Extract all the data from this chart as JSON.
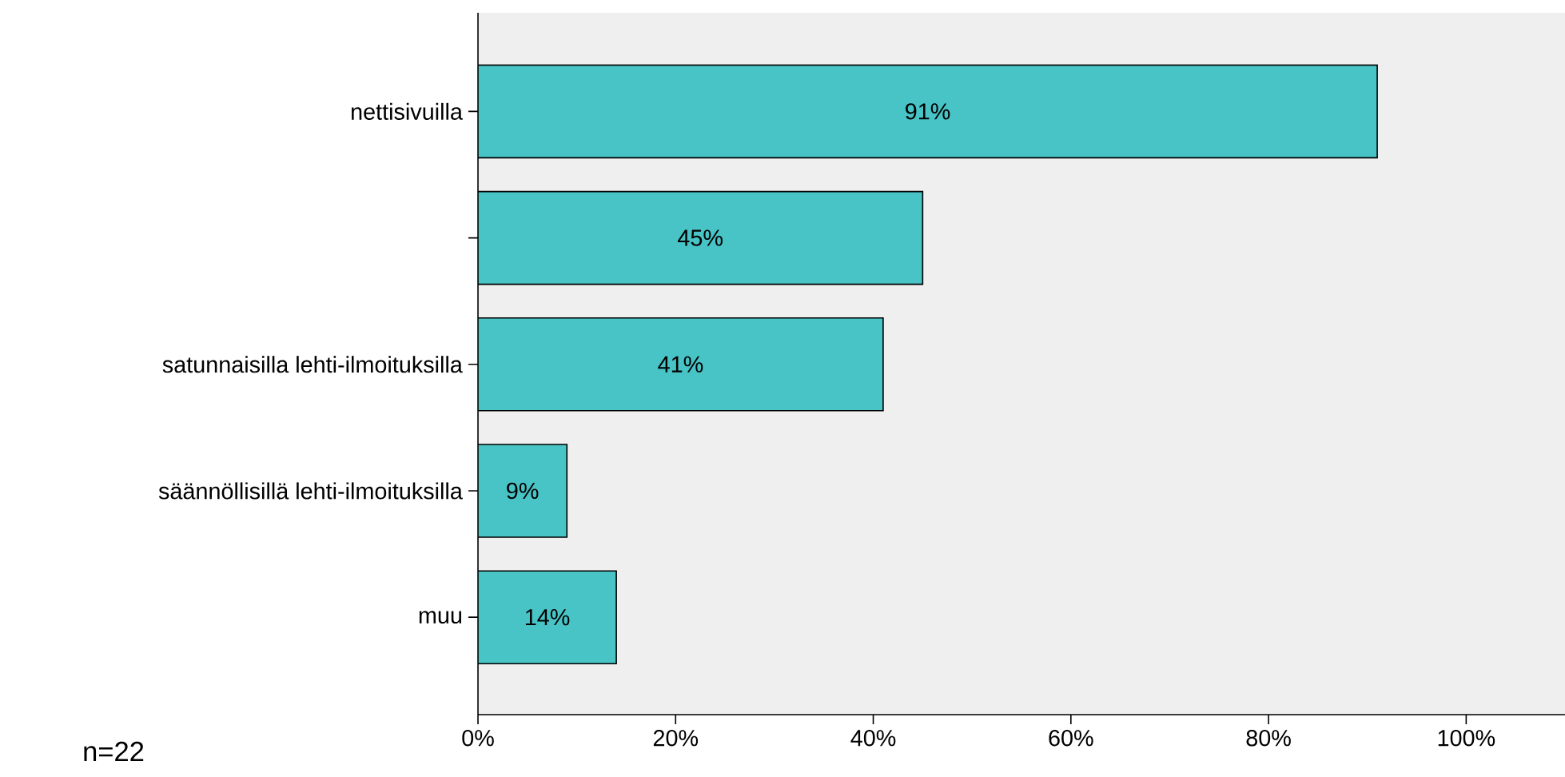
{
  "chart_data": {
    "type": "bar",
    "orientation": "horizontal",
    "categories": [
      "nettisivuilla",
      null,
      "satunnaisilla lehti-ilmoituksilla",
      "säännöllisillä lehti-ilmoituksilla",
      "muu"
    ],
    "values": [
      91,
      45,
      41,
      9,
      14
    ],
    "value_labels": [
      "91%",
      "45%",
      "41%",
      "9%",
      "14%"
    ],
    "color": "#48c3c6",
    "xlim": [
      0,
      110
    ],
    "xticks": [
      {
        "value": 0,
        "label": "0%"
      },
      {
        "value": 20,
        "label": "20%"
      },
      {
        "value": 40,
        "label": "40%"
      },
      {
        "value": 60,
        "label": "60%"
      },
      {
        "value": 80,
        "label": "80%"
      },
      {
        "value": 100,
        "label": "100%"
      }
    ],
    "grid": false,
    "annotations": [
      "n=22"
    ]
  }
}
